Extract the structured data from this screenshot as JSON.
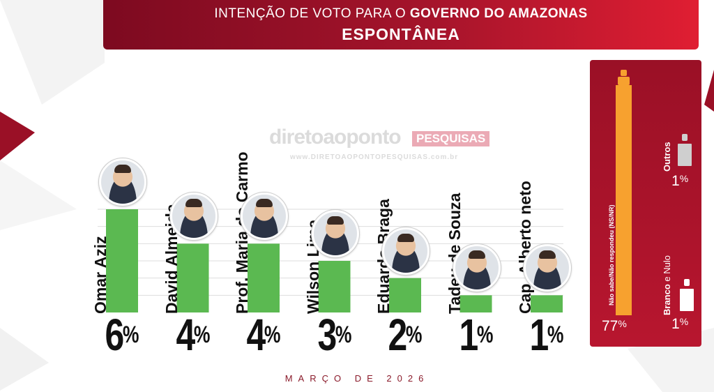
{
  "header": {
    "title_prefix": "INTENÇÃO DE VOTO PARA O ",
    "title_bold": "GOVERNO DO AMAZONAS",
    "subtitle": "ESPONTÂNEA"
  },
  "watermark": {
    "brand": "diretoaopontoPESQUISAS",
    "site": "www.DIRETOAOPONTOPESQUISAS.com.br"
  },
  "colors": {
    "bar": "#5bb951",
    "accent": "#a5142b",
    "ns_bar": "#f7a12f"
  },
  "chart_data": {
    "type": "bar",
    "categories": [
      "Omar Aziz",
      "David  Almeida",
      "Prof.  Maria do Carmo",
      "Wilson Lima",
      "Eduardo Braga",
      "Tadeu de  Souza",
      "Cap. Alberto neto"
    ],
    "values": [
      6,
      4,
      4,
      3,
      2,
      1,
      1
    ],
    "value_labels": [
      "6",
      "4",
      "4",
      "3",
      "2",
      "1",
      "1"
    ],
    "unit": "%",
    "ylim": [
      0,
      6
    ],
    "grid": true,
    "side_categories": [
      {
        "label": "Não sabe/Não respondeu (NS/NR)",
        "value": 77,
        "value_label": "77",
        "unit": "%"
      },
      {
        "label": "Outros",
        "value": 1,
        "value_label": "1",
        "unit": "%"
      },
      {
        "label_bold": "Branco",
        "label_rest": " e Nulo",
        "value": 1,
        "value_label": "1",
        "unit": "%"
      }
    ]
  },
  "footer": {
    "date": "MARÇO DE 2026"
  }
}
